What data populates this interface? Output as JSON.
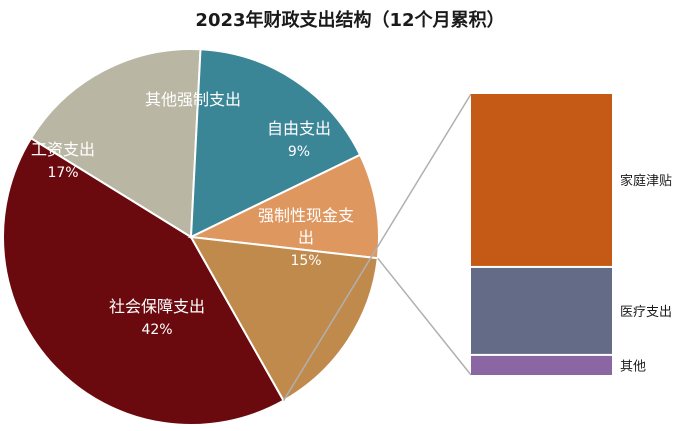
{
  "chart_data": [
    {
      "type": "pie",
      "title": "2023年财政支出结构（12个月累积）",
      "slices": [
        {
          "label": "社会保障支出",
          "value": 42,
          "value_label": "42%",
          "color": "#6b0a0e"
        },
        {
          "label": "工资支出",
          "value": 17,
          "value_label": "17%",
          "color": "#b9b6a3"
        },
        {
          "label": "其他强制支出",
          "value": 17,
          "value_label": "",
          "color": "#3a8596"
        },
        {
          "label": "自由支出",
          "value": 9,
          "value_label": "9%",
          "color": "#df9760"
        },
        {
          "label": "强制性现金支出",
          "value": 15,
          "value_label": "15%",
          "color": "#c08a4d"
        }
      ]
    },
    {
      "type": "bar",
      "stacked": true,
      "breakdown_of": "强制性现金支出",
      "series": [
        {
          "name": "家庭津贴",
          "value": 9.0,
          "color": "#c55a16"
        },
        {
          "name": "医疗支出",
          "value": 4.5,
          "color": "#636b86"
        },
        {
          "name": "其他",
          "value": 1.0,
          "color": "#8a67a3"
        }
      ]
    }
  ]
}
